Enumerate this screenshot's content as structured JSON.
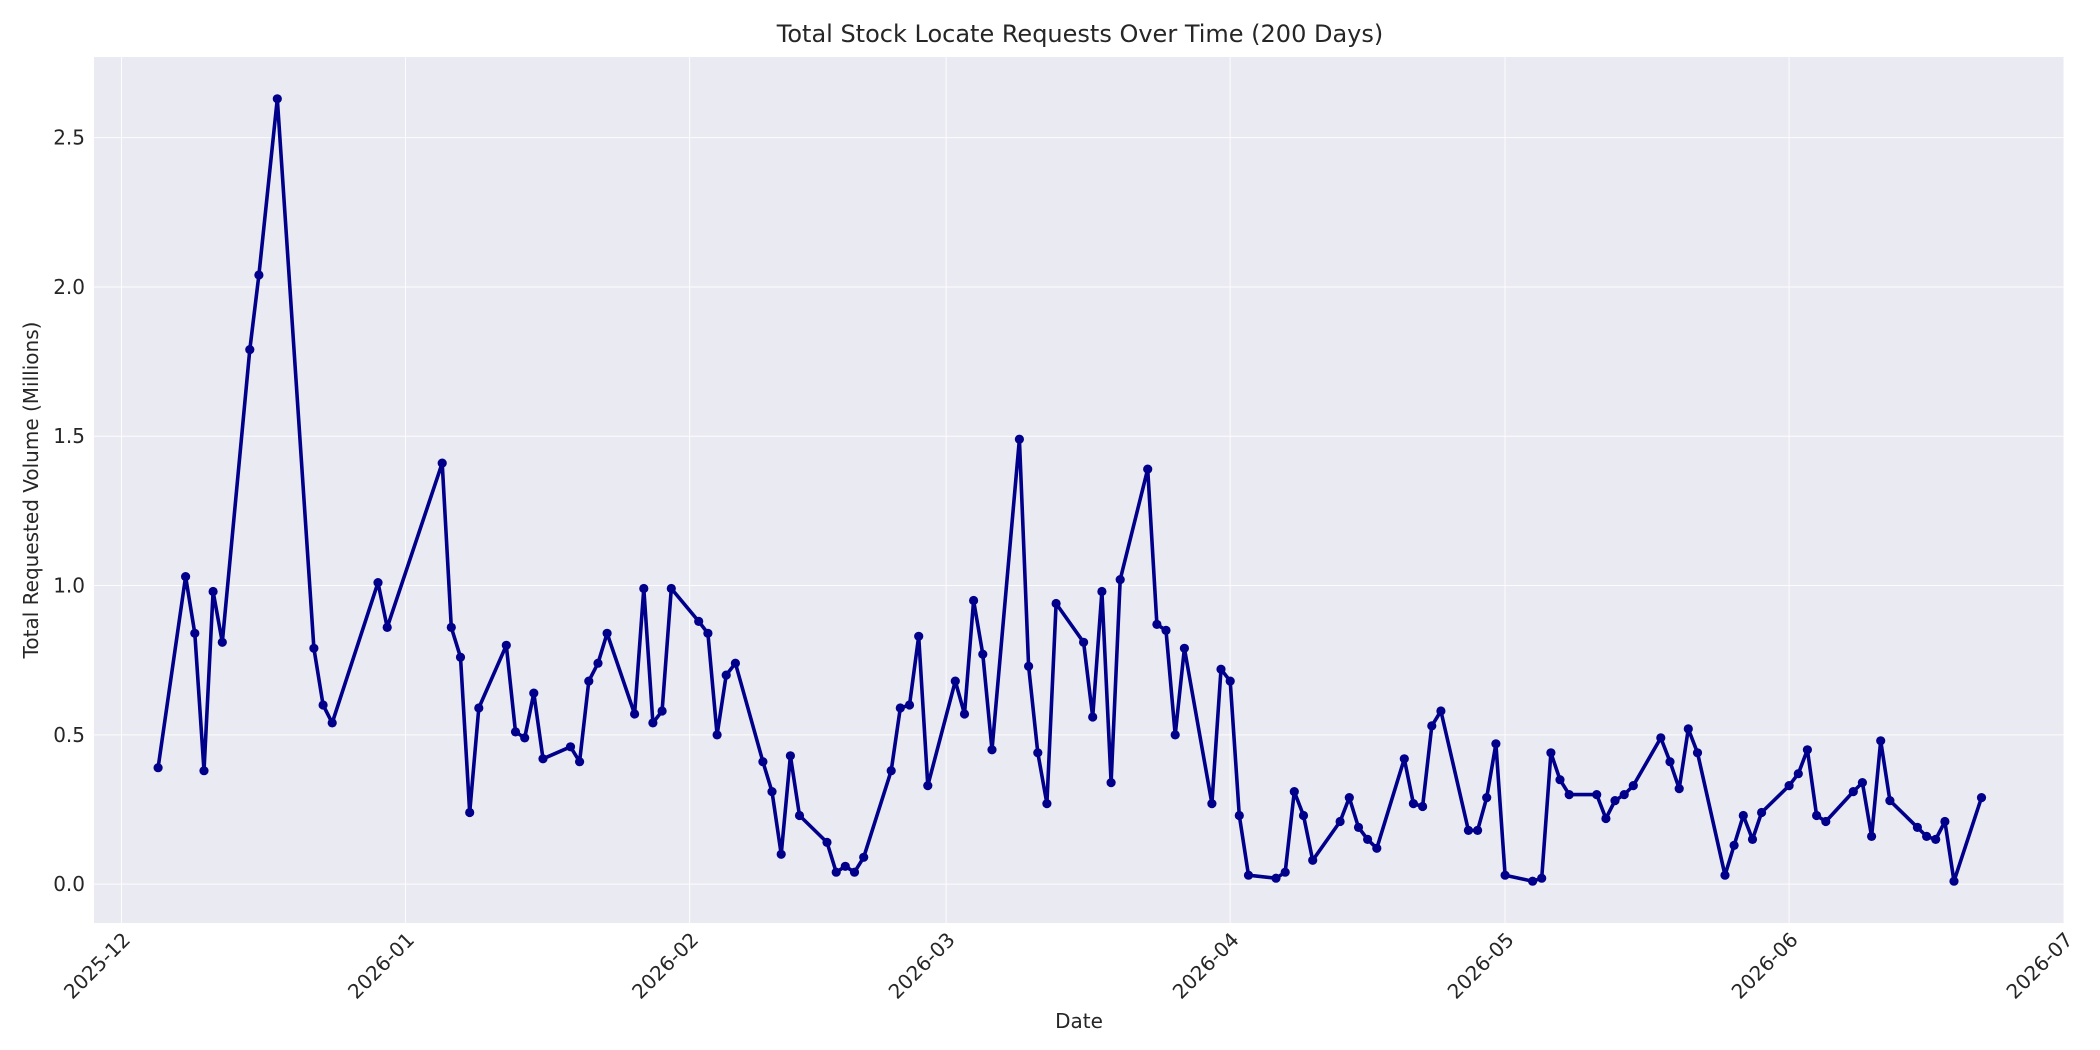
{
  "chart_data": {
    "type": "line",
    "title": "Total Stock Locate Requests Over Time (200 Days)",
    "xlabel": "Date",
    "ylabel": "Total Requested Volume (Millions)",
    "xlim": [
      "2025-11-28",
      "2026-07-01"
    ],
    "ylim": [
      -0.13,
      2.77
    ],
    "x_ticks": [
      "2025-12-01",
      "2026-01-01",
      "2026-02-01",
      "2026-03-01",
      "2026-04-01",
      "2026-05-01",
      "2026-06-01",
      "2026-07-01"
    ],
    "x_tick_labels": [
      "2025-12",
      "2026-01",
      "2026-02",
      "2026-03",
      "2026-04",
      "2026-05",
      "2026-06",
      "2026-07"
    ],
    "y_ticks": [
      0.0,
      0.5,
      1.0,
      1.5,
      2.0,
      2.5
    ],
    "y_tick_labels": [
      "0.0",
      "0.5",
      "1.0",
      "1.5",
      "2.0",
      "2.5"
    ],
    "grid": true,
    "background_color": "#eaeaf2",
    "series_color": "#00008b",
    "series": [
      {
        "x": [
          "2025-12-05",
          "2025-12-08",
          "2025-12-09",
          "2025-12-10",
          "2025-12-11",
          "2025-12-12",
          "2025-12-15",
          "2025-12-16",
          "2025-12-18",
          "2025-12-22",
          "2025-12-23",
          "2025-12-24",
          "2025-12-29",
          "2025-12-30",
          "2026-01-05",
          "2026-01-06",
          "2026-01-07",
          "2026-01-08",
          "2026-01-09",
          "2026-01-12",
          "2026-01-13",
          "2026-01-14",
          "2026-01-15",
          "2026-01-16",
          "2026-01-19",
          "2026-01-20",
          "2026-01-21",
          "2026-01-22",
          "2026-01-23",
          "2026-01-26",
          "2026-01-27",
          "2026-01-28",
          "2026-01-29",
          "2026-01-30",
          "2026-02-02",
          "2026-02-03",
          "2026-02-04",
          "2026-02-05",
          "2026-02-06",
          "2026-02-09",
          "2026-02-10",
          "2026-02-11",
          "2026-02-12",
          "2026-02-13",
          "2026-02-16",
          "2026-02-17",
          "2026-02-18",
          "2026-02-19",
          "2026-02-20",
          "2026-02-23",
          "2026-02-24",
          "2026-02-25",
          "2026-02-26",
          "2026-02-27",
          "2026-03-02",
          "2026-03-03",
          "2026-03-04",
          "2026-03-05",
          "2026-03-06",
          "2026-03-09",
          "2026-03-10",
          "2026-03-11",
          "2026-03-12",
          "2026-03-13",
          "2026-03-16",
          "2026-03-17",
          "2026-03-18",
          "2026-03-19",
          "2026-03-20",
          "2026-03-23",
          "2026-03-24",
          "2026-03-25",
          "2026-03-26",
          "2026-03-27",
          "2026-03-30",
          "2026-03-31",
          "2026-04-01",
          "2026-04-02",
          "2026-04-03",
          "2026-04-06",
          "2026-04-07",
          "2026-04-08",
          "2026-04-09",
          "2026-04-10",
          "2026-04-13",
          "2026-04-14",
          "2026-04-15",
          "2026-04-16",
          "2026-04-17",
          "2026-04-20",
          "2026-04-21",
          "2026-04-22",
          "2026-04-23",
          "2026-04-24",
          "2026-04-27",
          "2026-04-28",
          "2026-04-29",
          "2026-04-30",
          "2026-05-01",
          "2026-05-04",
          "2026-05-05",
          "2026-05-06",
          "2026-05-07",
          "2026-05-08",
          "2026-05-11",
          "2026-05-12",
          "2026-05-13",
          "2026-05-14",
          "2026-05-15",
          "2026-05-18",
          "2026-05-19",
          "2026-05-20",
          "2026-05-21",
          "2026-05-22",
          "2026-05-25",
          "2026-05-26",
          "2026-05-27",
          "2026-05-28",
          "2026-05-29",
          "2026-06-01",
          "2026-06-02",
          "2026-06-03",
          "2026-06-04",
          "2026-06-05",
          "2026-06-08",
          "2026-06-09",
          "2026-06-10",
          "2026-06-11",
          "2026-06-12",
          "2026-06-15",
          "2026-06-16",
          "2026-06-17",
          "2026-06-18",
          "2026-06-19",
          "2026-06-22"
        ],
        "values": [
          0.39,
          1.03,
          0.84,
          0.38,
          0.98,
          0.81,
          1.79,
          2.04,
          2.63,
          0.79,
          0.6,
          0.54,
          1.01,
          0.86,
          1.41,
          0.86,
          0.76,
          0.24,
          0.59,
          0.8,
          0.51,
          0.49,
          0.64,
          0.42,
          0.46,
          0.41,
          0.68,
          0.74,
          0.84,
          0.57,
          0.99,
          0.54,
          0.58,
          0.99,
          0.88,
          0.84,
          0.5,
          0.7,
          0.74,
          0.41,
          0.31,
          0.1,
          0.43,
          0.23,
          0.14,
          0.04,
          0.06,
          0.04,
          0.09,
          0.38,
          0.59,
          0.6,
          0.83,
          0.33,
          0.68,
          0.57,
          0.95,
          0.77,
          0.45,
          1.49,
          0.73,
          0.44,
          0.27,
          0.94,
          0.81,
          0.56,
          0.98,
          0.34,
          1.02,
          1.39,
          0.87,
          0.85,
          0.5,
          0.79,
          0.27,
          0.72,
          0.68,
          0.23,
          0.03,
          0.02,
          0.04,
          0.31,
          0.23,
          0.08,
          0.21,
          0.29,
          0.19,
          0.15,
          0.12,
          0.42,
          0.27,
          0.26,
          0.53,
          0.58,
          0.18,
          0.18,
          0.29,
          0.47,
          0.03,
          0.01,
          0.02,
          0.44,
          0.35,
          0.3,
          0.3,
          0.22,
          0.28,
          0.3,
          0.33,
          0.49,
          0.41,
          0.32,
          0.52,
          0.44,
          0.03,
          0.13,
          0.23,
          0.15,
          0.24,
          0.33,
          0.37,
          0.45,
          0.23,
          0.21,
          0.31,
          0.34,
          0.16,
          0.48,
          0.28,
          0.19,
          0.16,
          0.15,
          0.21,
          0.01,
          0.29
        ]
      }
    ]
  }
}
